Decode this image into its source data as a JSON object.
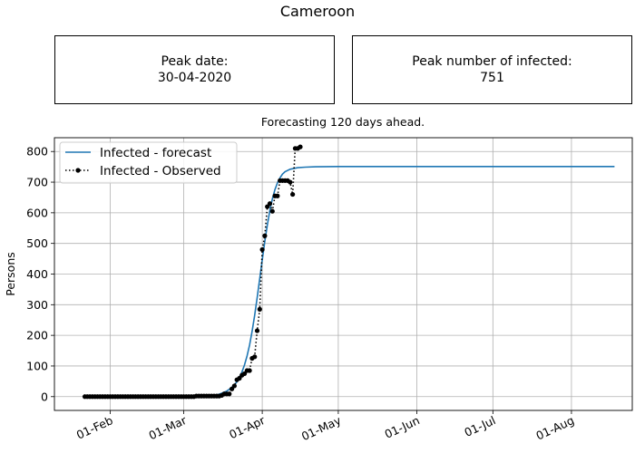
{
  "title": "Cameroon",
  "info_boxes": {
    "peak_date": {
      "label": "Peak date:",
      "value": "30-04-2020"
    },
    "peak_number": {
      "label": "Peak number of infected:",
      "value": "751"
    }
  },
  "chart_data": {
    "type": "line",
    "title": "Forecasting 120 days ahead.",
    "xlabel": "",
    "ylabel": "Persons",
    "xlim": [
      "2020-01-10",
      "2020-08-25"
    ],
    "ylim": [
      -45,
      845
    ],
    "x_tick_labels": [
      "01-Feb",
      "01-Mar",
      "01-Apr",
      "01-May",
      "01-Jun",
      "01-Jul",
      "01-Aug"
    ],
    "x_tick_dates": [
      "2020-02-01",
      "2020-03-01",
      "2020-04-01",
      "2020-05-01",
      "2020-06-01",
      "2020-07-01",
      "2020-08-01"
    ],
    "y_ticks": [
      0,
      100,
      200,
      300,
      400,
      500,
      600,
      700,
      800
    ],
    "grid": true,
    "legend_position": "top-left",
    "colors": {
      "forecast": "#1f77b4",
      "observed": "#000000",
      "grid": "#b0b0b0"
    },
    "series": [
      {
        "name": "Infected - forecast",
        "style": "solid",
        "x": [
          "2020-03-04",
          "2020-03-08",
          "2020-03-12",
          "2020-03-15",
          "2020-03-18",
          "2020-03-20",
          "2020-03-22",
          "2020-03-24",
          "2020-03-25",
          "2020-03-26",
          "2020-03-27",
          "2020-03-28",
          "2020-03-29",
          "2020-03-30",
          "2020-03-31",
          "2020-04-01",
          "2020-04-02",
          "2020-04-03",
          "2020-04-04",
          "2020-04-05",
          "2020-04-06",
          "2020-04-07",
          "2020-04-08",
          "2020-04-09",
          "2020-04-10",
          "2020-04-12",
          "2020-04-15",
          "2020-04-18",
          "2020-04-22",
          "2020-05-01",
          "2020-06-01",
          "2020-07-01",
          "2020-08-01",
          "2020-08-18"
        ],
        "y": [
          0,
          1,
          3,
          8,
          18,
          30,
          48,
          80,
          103,
          132,
          168,
          213,
          265,
          323,
          385,
          446,
          506,
          560,
          608,
          646,
          676,
          698,
          714,
          726,
          734,
          742,
          747,
          749,
          750,
          751,
          751,
          751,
          751,
          751
        ]
      },
      {
        "name": "Infected - Observed",
        "style": "dotted-markers",
        "x": [
          "2020-01-22",
          "2020-01-23",
          "2020-01-24",
          "2020-01-25",
          "2020-01-26",
          "2020-01-27",
          "2020-01-28",
          "2020-01-29",
          "2020-01-30",
          "2020-01-31",
          "2020-02-01",
          "2020-02-02",
          "2020-02-03",
          "2020-02-04",
          "2020-02-05",
          "2020-02-06",
          "2020-02-07",
          "2020-02-08",
          "2020-02-09",
          "2020-02-10",
          "2020-02-11",
          "2020-02-12",
          "2020-02-13",
          "2020-02-14",
          "2020-02-15",
          "2020-02-16",
          "2020-02-17",
          "2020-02-18",
          "2020-02-19",
          "2020-02-20",
          "2020-02-21",
          "2020-02-22",
          "2020-02-23",
          "2020-02-24",
          "2020-02-25",
          "2020-02-26",
          "2020-02-27",
          "2020-02-28",
          "2020-02-29",
          "2020-03-01",
          "2020-03-02",
          "2020-03-03",
          "2020-03-04",
          "2020-03-05",
          "2020-03-06",
          "2020-03-07",
          "2020-03-08",
          "2020-03-09",
          "2020-03-10",
          "2020-03-11",
          "2020-03-12",
          "2020-03-13",
          "2020-03-14",
          "2020-03-15",
          "2020-03-16",
          "2020-03-17",
          "2020-03-18",
          "2020-03-19",
          "2020-03-20",
          "2020-03-21",
          "2020-03-22",
          "2020-03-23",
          "2020-03-24",
          "2020-03-25",
          "2020-03-26",
          "2020-03-27",
          "2020-03-28",
          "2020-03-29",
          "2020-03-30",
          "2020-03-31",
          "2020-04-01",
          "2020-04-02",
          "2020-04-03",
          "2020-04-04",
          "2020-04-05",
          "2020-04-06",
          "2020-04-07",
          "2020-04-08",
          "2020-04-09",
          "2020-04-10",
          "2020-04-11",
          "2020-04-12",
          "2020-04-13",
          "2020-04-14",
          "2020-04-15",
          "2020-04-16"
        ],
        "y": [
          0,
          0,
          0,
          0,
          0,
          0,
          0,
          0,
          0,
          0,
          0,
          0,
          0,
          0,
          0,
          0,
          0,
          0,
          0,
          0,
          0,
          0,
          0,
          0,
          0,
          0,
          0,
          0,
          0,
          0,
          0,
          0,
          0,
          0,
          0,
          0,
          0,
          0,
          0,
          0,
          0,
          0,
          0,
          0,
          2,
          2,
          2,
          2,
          2,
          2,
          2,
          2,
          2,
          2,
          4,
          9,
          9,
          9,
          25,
          35,
          55,
          60,
          70,
          75,
          85,
          85,
          125,
          130,
          215,
          285,
          480,
          525,
          620,
          630,
          605,
          655,
          655,
          705,
          705,
          705,
          705,
          700,
          660,
          810,
          810,
          815
        ]
      }
    ]
  }
}
